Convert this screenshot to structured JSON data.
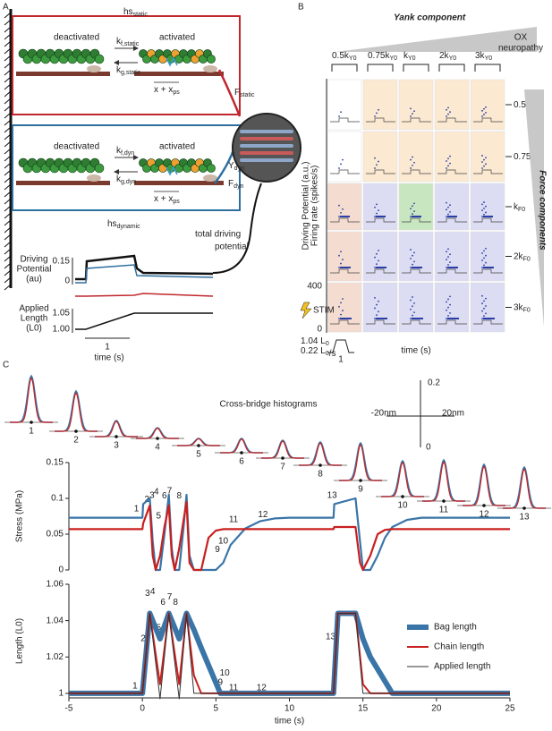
{
  "panel_labels": [
    "A",
    "B",
    "C"
  ],
  "panel_a": {
    "static_box": {
      "title": "hs",
      "title_sub": "static",
      "deactivated": "deactivated",
      "activated": "activated",
      "kf": "k",
      "kf_sub": "f,static",
      "kg": "k",
      "kg_sub": "g,static",
      "dist": "x + x",
      "dist_sub": "ps"
    },
    "dynamic_box": {
      "title": "hs",
      "title_sub": "dynamic",
      "deactivated": "deactivated",
      "activated": "activated",
      "kf": "k",
      "kf_sub": "f,dyn",
      "kg": "k",
      "kg_sub": "g,dyn",
      "dist": "x + x",
      "dist_sub": "ps"
    },
    "f_static": {
      "main": "F",
      "sub": "static"
    },
    "y_dyn": {
      "main": "Y",
      "sub": "dyn"
    },
    "f_dyn": {
      "main": "F",
      "sub": "dyn"
    },
    "total_label": [
      "total driving",
      "potential"
    ],
    "driving_ylabel": [
      "Driving",
      "Potential",
      "(au)"
    ],
    "driving_ticks": [
      "0.15",
      "0"
    ],
    "length_ylabel": [
      "Applied",
      "Length",
      "(L0)"
    ],
    "length_ticks": [
      "1.05",
      "1.00"
    ],
    "time_scale": "1",
    "xlabel": "time (s)"
  },
  "panel_b": {
    "title": "Yank component",
    "ox_label": [
      "OX",
      "neuropathy"
    ],
    "columns": [
      {
        "main": "0.5k",
        "sub": "Y0"
      },
      {
        "main": "0.75k",
        "sub": "Y0"
      },
      {
        "main": "k",
        "sub": "Y0"
      },
      {
        "main": "2k",
        "sub": "Y0"
      },
      {
        "main": "3k",
        "sub": "Y0"
      }
    ],
    "rows": [
      {
        "main": "0.5k",
        "sub": "F0"
      },
      {
        "main": "0.75k",
        "sub": "F0"
      },
      {
        "main": "k",
        "sub": "F0"
      },
      {
        "main": "2k",
        "sub": "F0"
      },
      {
        "main": "3k",
        "sub": "F0"
      }
    ],
    "force_label": "Force components",
    "ylabel_driving": "Driving Potential (a.u.)",
    "ylabel_firing": "Firing rate (spikes/s)",
    "rate_ticks": [
      "400",
      "0"
    ],
    "stim": "STIM",
    "stim_length": {
      "main": "1.04 L",
      "sub": "0"
    },
    "stim_rate": {
      "main": "0.22 L",
      "sub": "0",
      "tail": "/s"
    },
    "scale": "1",
    "xlabel": "time (s)"
  },
  "panel_c": {
    "hist_title": "Cross-bridge histograms",
    "hist_labels": [
      "1",
      "2",
      "3",
      "4",
      "5",
      "6",
      "7",
      "8",
      "9",
      "10",
      "11",
      "12",
      "13"
    ],
    "scale_y": [
      "0.2",
      "0"
    ],
    "scale_x": [
      "-20nm",
      "20nm"
    ]
  },
  "chart_data": [
    {
      "type": "line",
      "y_label": "Stress (MPa)",
      "xlim": [
        -5,
        25
      ],
      "ylim": [
        0,
        0.15
      ],
      "yticks": [
        0,
        0.05,
        0.1,
        0.15
      ],
      "x": [
        -5,
        0,
        0.05,
        0.5,
        0.7,
        0.9,
        1.2,
        1.5,
        1.8,
        2.0,
        2.2,
        2.5,
        2.8,
        3.0,
        3.2,
        3.5,
        4,
        4.5,
        5,
        5.5,
        6,
        7,
        8,
        9,
        10,
        13,
        13.05,
        14.5,
        14.8,
        15,
        15.5,
        16,
        16.5,
        17,
        18,
        19,
        25
      ],
      "series": [
        {
          "color": "#3a75a8",
          "linewidth": 2.2,
          "values": [
            0.073,
            0.073,
            0.092,
            0.1,
            0.04,
            0,
            0,
            0.05,
            0.105,
            0.03,
            0,
            0,
            0.06,
            0.105,
            0.02,
            0,
            0,
            0,
            0,
            0.01,
            0.035,
            0.058,
            0.068,
            0.072,
            0.073,
            0.073,
            0.092,
            0.1,
            0.04,
            0,
            0,
            0.02,
            0.045,
            0.06,
            0.07,
            0.073,
            0.073
          ]
        },
        {
          "color": "#c8201e",
          "linewidth": 2.2,
          "values": [
            0.057,
            0.057,
            0.065,
            0.09,
            0.02,
            0,
            0.02,
            0.06,
            0.09,
            0.02,
            0,
            0.03,
            0.07,
            0.095,
            0.01,
            0,
            0,
            0.045,
            0.055,
            0.057,
            0.057,
            0.057,
            0.057,
            0.057,
            0.057,
            0.057,
            0.06,
            0.06,
            0.01,
            0,
            0.02,
            0.05,
            0.056,
            0.057,
            0.057,
            0.057,
            0.057
          ]
        }
      ],
      "annotations": [
        {
          "text": "1",
          "x": -0.4,
          "y": 0.085
        },
        {
          "text": "2",
          "x": 0.3,
          "y": 0.098
        },
        {
          "text": "3",
          "x": 0.65,
          "y": 0.104
        },
        {
          "text": "4",
          "x": 0.95,
          "y": 0.109
        },
        {
          "text": "5",
          "x": 1.1,
          "y": 0.075
        },
        {
          "text": "6",
          "x": 1.5,
          "y": 0.103
        },
        {
          "text": "7",
          "x": 1.85,
          "y": 0.11
        },
        {
          "text": "8",
          "x": 2.5,
          "y": 0.103
        },
        {
          "text": "9",
          "x": 5.1,
          "y": 0.028
        },
        {
          "text": "10",
          "x": 5.5,
          "y": 0.04
        },
        {
          "text": "11",
          "x": 6.2,
          "y": 0.07
        },
        {
          "text": "12",
          "x": 8.2,
          "y": 0.077
        },
        {
          "text": "13",
          "x": 12.9,
          "y": 0.104
        }
      ]
    },
    {
      "type": "line",
      "y_label": "Length (L0)",
      "x_label": "time (s)",
      "xlim": [
        -5,
        25
      ],
      "ylim": [
        0.9975,
        1.06
      ],
      "xticks": [
        -5,
        0,
        5,
        10,
        15,
        20,
        25
      ],
      "yticks": [
        1,
        1.02,
        1.04,
        1.06
      ],
      "x": [
        -5,
        0,
        0.5,
        1.2,
        1.8,
        2.5,
        3.0,
        3.5,
        4,
        5.3,
        13,
        13.3,
        14.5,
        15,
        15.5,
        17,
        25
      ],
      "legend": "upper right",
      "series": [
        {
          "name": "Bag length",
          "color": "#3a75a8",
          "linewidth": 6,
          "values": [
            1,
            1,
            1.044,
            1.03,
            1.044,
            1.03,
            1.044,
            1.035,
            1.025,
            1,
            1,
            1.044,
            1.044,
            1.03,
            1.02,
            1,
            1
          ]
        },
        {
          "name": "Chain length",
          "color": "#c8201e",
          "linewidth": 2,
          "values": [
            1,
            1,
            1.044,
            1.005,
            1.044,
            1.005,
            1.044,
            1.01,
            1,
            1,
            1,
            1.044,
            1.044,
            1.005,
            1,
            1,
            1
          ]
        },
        {
          "name": "Applied length",
          "color": "#333333",
          "linewidth": 1,
          "values": [
            1,
            1,
            1.044,
            0.997,
            1.044,
            0.997,
            1.044,
            1,
            1,
            1,
            1,
            1.044,
            1.044,
            1,
            1,
            1,
            1
          ]
        }
      ],
      "annotations": [
        {
          "text": "1",
          "x": -0.5,
          "y": 1.004
        },
        {
          "text": "2",
          "x": 0.05,
          "y": 1.03
        },
        {
          "text": "3",
          "x": 0.35,
          "y": 1.055
        },
        {
          "text": "4",
          "x": 0.7,
          "y": 1.056
        },
        {
          "text": "5",
          "x": 1.1,
          "y": 1.036
        },
        {
          "text": "6",
          "x": 1.4,
          "y": 1.05
        },
        {
          "text": "7",
          "x": 1.85,
          "y": 1.053
        },
        {
          "text": "8",
          "x": 2.25,
          "y": 1.05
        },
        {
          "text": "9",
          "x": 5.3,
          "y": 1.006
        },
        {
          "text": "10",
          "x": 5.6,
          "y": 1.011
        },
        {
          "text": "11",
          "x": 6.2,
          "y": 1.003
        },
        {
          "text": "12",
          "x": 8.1,
          "y": 1.003
        },
        {
          "text": "13",
          "x": 12.8,
          "y": 1.031
        }
      ]
    }
  ]
}
